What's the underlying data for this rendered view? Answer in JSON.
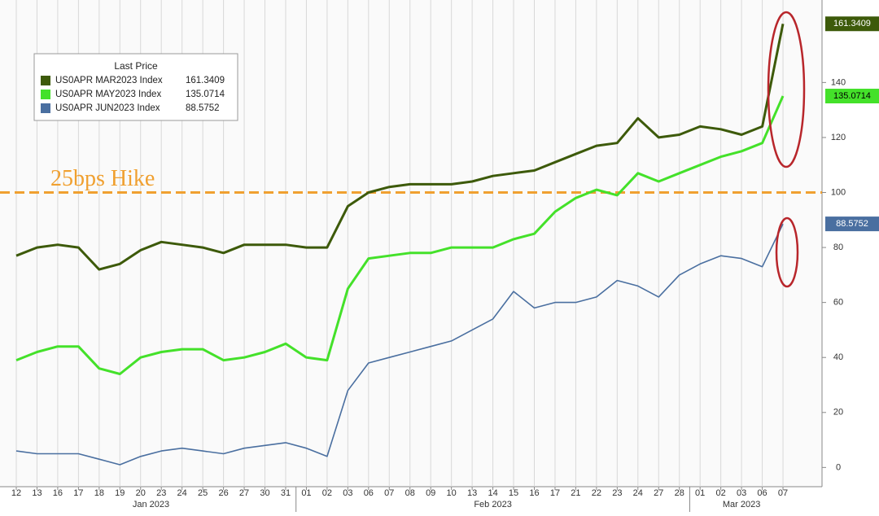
{
  "chart_data": {
    "type": "line",
    "legend_title": "Last Price",
    "categories": [
      "12",
      "13",
      "16",
      "17",
      "18",
      "19",
      "20",
      "23",
      "24",
      "25",
      "26",
      "27",
      "30",
      "31",
      "01",
      "02",
      "03",
      "06",
      "07",
      "08",
      "09",
      "10",
      "13",
      "14",
      "15",
      "16",
      "17",
      "21",
      "22",
      "23",
      "24",
      "27",
      "28",
      "01",
      "02",
      "03",
      "06",
      "07"
    ],
    "months": [
      "Jan 2023",
      "Feb 2023",
      "Mar 2023"
    ],
    "series": [
      {
        "name": "US0APR MAR2023 Index",
        "color": "#3d5a0a",
        "values": [
          77,
          80,
          81,
          80,
          72,
          74,
          79,
          82,
          81,
          80,
          78,
          81,
          81,
          81,
          80,
          80,
          95,
          100,
          102,
          103,
          103,
          103,
          104,
          106,
          107,
          108,
          111,
          114,
          117,
          118,
          127,
          120,
          121,
          124,
          123,
          121,
          124,
          161.3409
        ]
      },
      {
        "name": "US0APR MAY2023 Index",
        "color": "#44e12a",
        "values": [
          39,
          42,
          44,
          44,
          36,
          34,
          40,
          42,
          43,
          43,
          39,
          40,
          42,
          45,
          40,
          39,
          65,
          76,
          77,
          78,
          78,
          80,
          80,
          80,
          83,
          85,
          93,
          98,
          101,
          99,
          107,
          104,
          107,
          110,
          113,
          115,
          118,
          135.0714
        ]
      },
      {
        "name": "US0APR JUN2023 Index",
        "color": "#4a6fa0",
        "values": [
          6,
          5,
          5,
          5,
          3,
          1,
          4,
          6,
          7,
          6,
          5,
          7,
          8,
          9,
          7,
          4,
          28,
          38,
          40,
          42,
          44,
          46,
          50,
          54,
          64,
          58,
          60,
          60,
          62,
          68,
          66,
          62,
          70,
          74,
          77,
          76,
          73,
          88.5752
        ]
      }
    ],
    "annotation": {
      "text": "25bps Hike",
      "y": 100,
      "color": "#f0a030"
    },
    "ylim": [
      -7,
      170
    ],
    "yticks": [
      0,
      20,
      40,
      60,
      80,
      100,
      120,
      140
    ],
    "grid": true,
    "legend": "upper left"
  }
}
